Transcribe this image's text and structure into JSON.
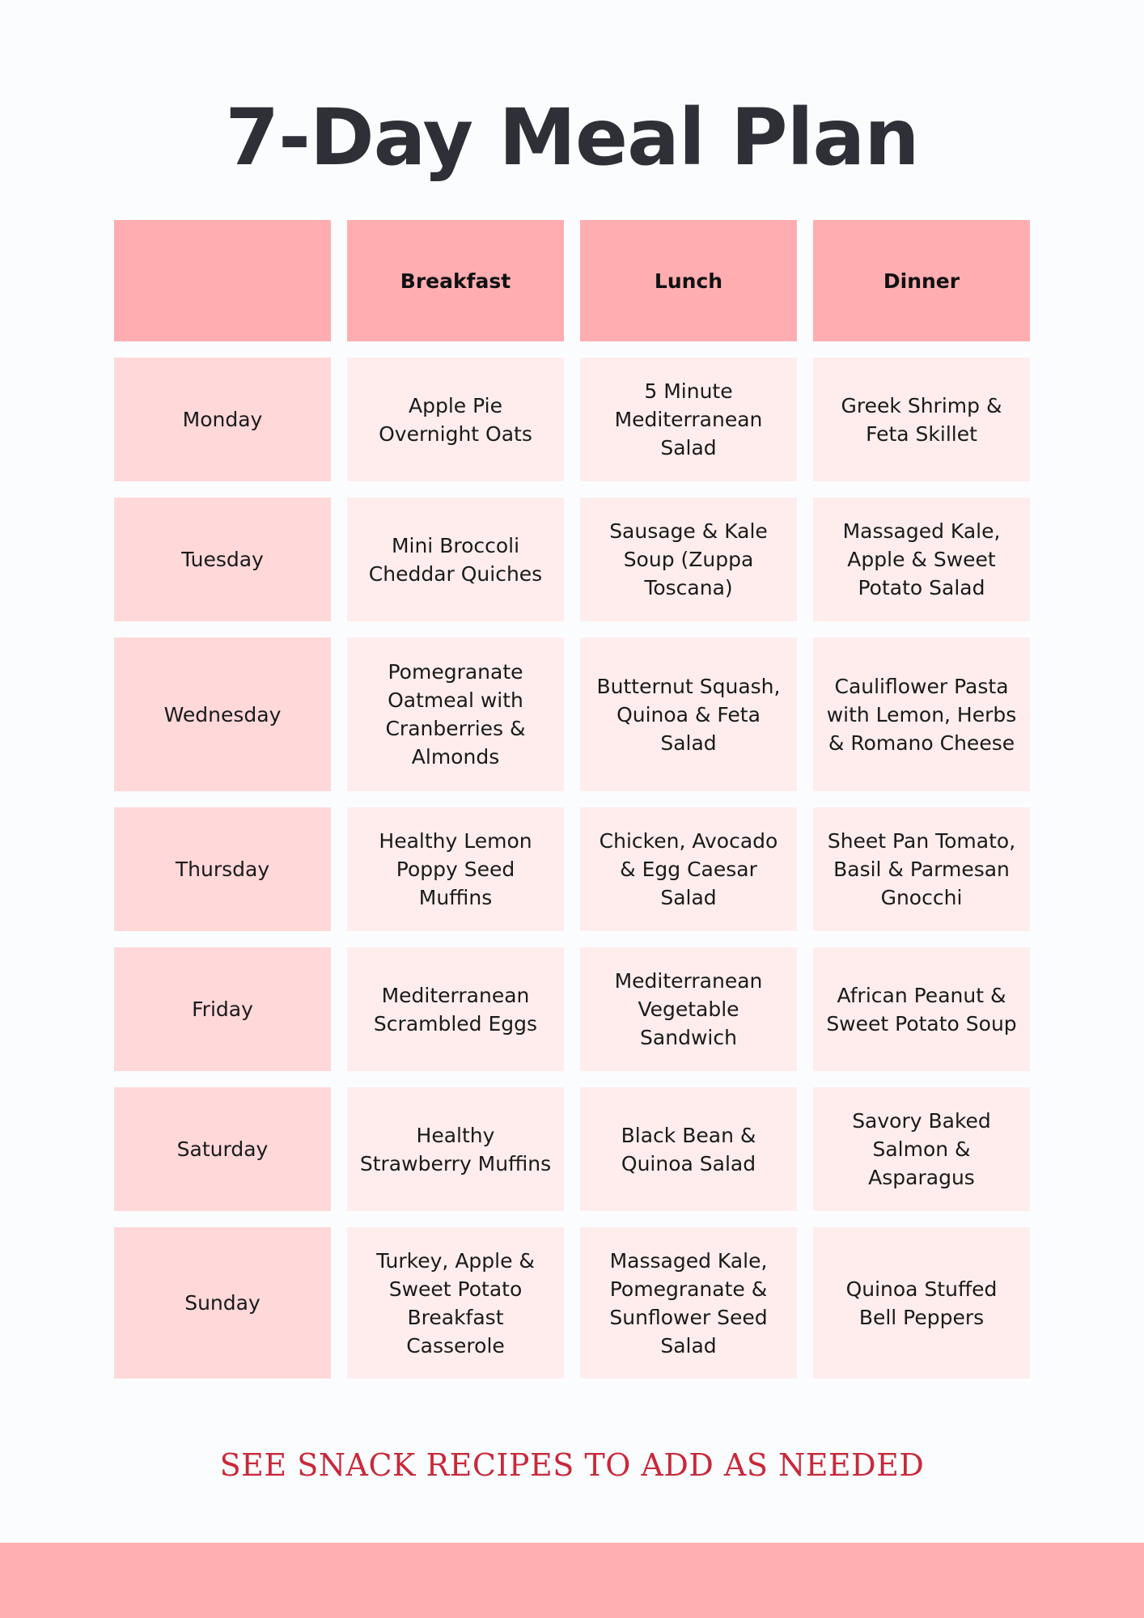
{
  "title": "7-Day Meal Plan",
  "columns": [
    "",
    "Breakfast",
    "Lunch",
    "Dinner"
  ],
  "rows": [
    {
      "day": "Monday",
      "breakfast": "Apple Pie Overnight Oats",
      "lunch": "5 Minute Mediterranean Salad",
      "dinner": "Greek Shrimp & Feta Skillet"
    },
    {
      "day": "Tuesday",
      "breakfast": "Mini Broccoli Cheddar Quiches",
      "lunch": "Sausage & Kale Soup (Zuppa Toscana)",
      "dinner": "Massaged Kale, Apple & Sweet Potato Salad"
    },
    {
      "day": "Wednesday",
      "breakfast": "Pomegranate Oatmeal with Cranberries & Almonds",
      "lunch": "Butternut Squash, Quinoa & Feta Salad",
      "dinner": "Cauliflower Pasta with Lemon, Herbs & Romano Cheese"
    },
    {
      "day": "Thursday",
      "breakfast": "Healthy Lemon Poppy Seed Muffins",
      "lunch": "Chicken, Avocado & Egg Caesar Salad",
      "dinner": "Sheet Pan Tomato, Basil & Parmesan Gnocchi"
    },
    {
      "day": "Friday",
      "breakfast": "Mediterranean Scrambled Eggs",
      "lunch": "Mediterranean Vegetable Sandwich",
      "dinner": "African Peanut & Sweet Potato Soup"
    },
    {
      "day": "Saturday",
      "breakfast": "Healthy Strawberry Muffins",
      "lunch": "Black Bean & Quinoa Salad",
      "dinner": "Savory Baked Salmon & Asparagus"
    },
    {
      "day": "Sunday",
      "breakfast": "Turkey, Apple & Sweet Potato Breakfast Casserole",
      "lunch": "Massaged Kale, Pomegranate & Sunflower Seed Salad",
      "dinner": "Quinoa Stuffed Bell Peppers"
    }
  ],
  "footnote": "SEE SNACK RECIPES TO ADD AS NEEDED",
  "colors": {
    "title": "#2e2f37",
    "header_cell": "#ffadb1",
    "day_cell": "#ffd8da",
    "meal_cell": "#ffeded",
    "footnote": "#c8293a",
    "footer_band": "#ffafb2",
    "background": "#fbfcfd"
  }
}
